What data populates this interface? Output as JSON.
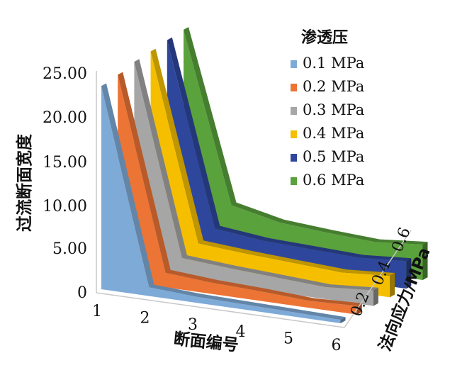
{
  "chart_data": {
    "type": "area",
    "title": "",
    "xlabel": "断面编号",
    "ylabel": "过流断面宽度",
    "zlabel": "法向应力/MPa",
    "x": [
      1,
      2,
      3,
      4,
      5,
      6
    ],
    "x_tick_labels": [
      "1",
      "2",
      "3",
      "4",
      "5",
      "6"
    ],
    "y_tick_labels": [
      "0",
      "5.00",
      "10.00",
      "15.00",
      "20.00",
      "25.00"
    ],
    "ylim": [
      0,
      25
    ],
    "z_tick_labels": [
      "0.2",
      "0.4",
      "0.6"
    ],
    "legend_title": "渗透压",
    "legend_position": "top-right",
    "grid": false,
    "series": [
      {
        "name": "0.1 MPa",
        "color": "#7eaad8",
        "values": [
          23.5,
          1.0,
          0.7,
          0.6,
          0.5,
          0.4
        ]
      },
      {
        "name": "0.2 MPa",
        "color": "#ec7435",
        "values": [
          23.8,
          1.7,
          1.3,
          1.1,
          0.8,
          1.0
        ]
      },
      {
        "name": "0.3 MPa",
        "color": "#a6a6a6",
        "values": [
          24.3,
          2.4,
          2.0,
          1.7,
          1.4,
          1.8
        ]
      },
      {
        "name": "0.4 MPa",
        "color": "#f5bf00",
        "values": [
          24.5,
          3.1,
          2.7,
          2.4,
          2.1,
          2.5
        ]
      },
      {
        "name": "0.5 MPa",
        "color": "#2e479c",
        "values": [
          24.8,
          3.8,
          3.2,
          3.0,
          2.8,
          3.2
        ]
      },
      {
        "name": "0.6 MPa",
        "color": "#5aa23c",
        "values": [
          25.0,
          5.5,
          4.3,
          3.9,
          3.6,
          4.1
        ]
      }
    ]
  }
}
